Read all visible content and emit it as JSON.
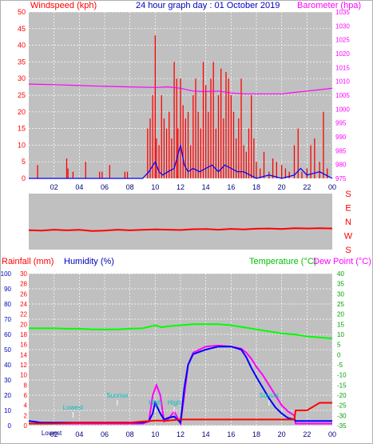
{
  "chart_data": [
    {
      "type": "bar+line",
      "title": "24 hour graph day : 01 October 2019",
      "left_axis_label": "Windspeed (kph)",
      "right_axis_label": "Barometer (hpa)",
      "x_ticks": [
        "02",
        "04",
        "06",
        "08",
        "10",
        "12",
        "14",
        "16",
        "18",
        "20",
        "22",
        "00"
      ],
      "y_left_range": [
        0,
        50
      ],
      "y_left_ticks": [
        "0",
        "5",
        "10",
        "15",
        "20",
        "25",
        "30",
        "35",
        "40",
        "45",
        "50"
      ],
      "y_right_range": [
        975,
        1035
      ],
      "y_right_ticks": [
        "975",
        "980",
        "985",
        "990",
        "995",
        "1000",
        "1005",
        "1010",
        "1015",
        "1020",
        "1025",
        "1030",
        "1035"
      ],
      "grid": true,
      "series": [
        {
          "name": "Windspeed (kph)",
          "color": "#ff0000",
          "style": "bars",
          "x": [
            0.7,
            3.0,
            3.1,
            3.5,
            4.5,
            5.6,
            5.8,
            6.4,
            7.6,
            7.8,
            9.4,
            9.6,
            9.8,
            10.0,
            10.1,
            10.3,
            10.5,
            10.7,
            10.9,
            11.1,
            11.3,
            11.5,
            11.7,
            11.8,
            12.0,
            12.2,
            12.4,
            12.6,
            12.8,
            13.0,
            13.2,
            13.4,
            13.6,
            13.8,
            14.0,
            14.2,
            14.4,
            14.6,
            14.8,
            15.0,
            15.2,
            15.4,
            15.6,
            15.8,
            16.0,
            16.2,
            16.4,
            16.6,
            16.8,
            17.0,
            17.2,
            17.4,
            17.6,
            17.8,
            18.0,
            18.3,
            18.6,
            19.0,
            19.3,
            19.6,
            20.0,
            20.3,
            20.6,
            21.0,
            21.3,
            21.6,
            22.0,
            22.3,
            22.6,
            23.0,
            23.3,
            23.6
          ],
          "y": [
            4,
            6,
            3,
            2,
            5,
            2,
            2,
            4,
            2,
            2,
            15,
            18,
            25,
            43,
            12,
            10,
            25,
            18,
            15,
            20,
            12,
            35,
            30,
            15,
            30,
            22,
            18,
            20,
            10,
            25,
            30,
            20,
            15,
            35,
            28,
            20,
            30,
            35,
            15,
            25,
            33,
            18,
            32,
            30,
            25,
            20,
            12,
            18,
            30,
            10,
            8,
            15,
            25,
            12,
            5,
            3,
            8,
            2,
            6,
            5,
            4,
            3,
            2,
            10,
            15,
            2,
            3,
            10,
            12,
            5,
            20,
            3
          ]
        },
        {
          "name": "Gust",
          "color": "#0000ff",
          "style": "line",
          "x": [
            0,
            9.0,
            9.5,
            10.0,
            10.3,
            10.6,
            11.0,
            11.5,
            12.0,
            12.3,
            12.6,
            13.0,
            13.5,
            14.0,
            14.5,
            15.0,
            15.5,
            16.0,
            16.5,
            17.0,
            17.5,
            18.0,
            19.0,
            20.0,
            21.0,
            21.5,
            22.0,
            23.0,
            24.0
          ],
          "y": [
            0,
            0,
            2,
            5,
            2,
            1,
            2,
            3,
            10,
            4,
            2,
            3,
            2,
            3,
            4,
            2,
            4,
            3,
            2,
            2,
            1,
            0,
            1,
            0,
            1,
            3,
            1,
            2,
            0
          ]
        },
        {
          "name": "Barometer (hpa)",
          "color": "#ff00ff",
          "style": "line",
          "axis": "right",
          "x": [
            0,
            2,
            4,
            6,
            8,
            10,
            11,
            12,
            13,
            14,
            15,
            16,
            17,
            18,
            19,
            20,
            21,
            22,
            23,
            24
          ],
          "y": [
            1009,
            1008.8,
            1008.5,
            1008.2,
            1008,
            1007.8,
            1008,
            1007.5,
            1006.5,
            1006.3,
            1006.5,
            1005.8,
            1005.5,
            1005.5,
            1005.5,
            1005.5,
            1006,
            1006.5,
            1007,
            1007.5
          ]
        }
      ]
    },
    {
      "type": "line",
      "left_axis_label": "",
      "right_axis_label": "",
      "direction_labels": [
        "S",
        "E",
        "N",
        "W",
        "S"
      ],
      "grid": false,
      "series": [
        {
          "name": "Wind Direction",
          "color": "#ff0000",
          "style": "line",
          "x": [
            0,
            1,
            2,
            3,
            4,
            5,
            6,
            7,
            8,
            9,
            10,
            11,
            12,
            13,
            14,
            15,
            16,
            17,
            18,
            19,
            20,
            21,
            22,
            23,
            24
          ],
          "y": [
            235,
            238,
            232,
            236,
            233,
            240,
            238,
            232,
            236,
            233,
            230,
            232,
            234,
            229,
            228,
            232,
            227,
            230,
            226,
            224,
            228,
            222,
            224,
            222,
            224
          ]
        }
      ]
    },
    {
      "type": "line",
      "left_axis_label": "Rainfall (mm)",
      "left_axis_label2": "Humidity (%)",
      "right_axis_label": "Temperature (°C)",
      "right_axis_label2": "Dew Point (°C)",
      "x_ticks": [
        "02",
        "04",
        "06",
        "08",
        "10",
        "12",
        "14",
        "16",
        "18",
        "20",
        "22",
        "00"
      ],
      "y_humidity_ticks": [
        "0",
        "10",
        "20",
        "30",
        "40",
        "50",
        "60",
        "70",
        "80",
        "90",
        "100"
      ],
      "y_rain_ticks": [
        "0",
        "2",
        "4",
        "6",
        "8",
        "10",
        "12",
        "14",
        "16",
        "18",
        "20",
        "22",
        "24",
        "26",
        "28",
        "30"
      ],
      "y_temp_range": [
        -35,
        40
      ],
      "y_temp_ticks": [
        "-35",
        "-30",
        "-25",
        "-20",
        "-15",
        "-10",
        "-5",
        "0",
        "5",
        "10",
        "15",
        "20",
        "25",
        "30",
        "35",
        "40"
      ],
      "grid": true,
      "annotations": [
        {
          "text": "Lowest",
          "x": 3.5
        },
        {
          "text": "Sunrise",
          "x": 7.0
        },
        {
          "text": "Sunset",
          "x": 19.0
        },
        {
          "text": "Lowest",
          "x": 1.8
        },
        {
          "text": "High",
          "x": 10.0
        },
        {
          "text": "High",
          "x": 11.5
        }
      ],
      "series": [
        {
          "name": "Temperature (°C)",
          "color": "#00ff00",
          "axis": "right",
          "x": [
            0,
            1,
            2,
            3,
            4,
            5,
            6,
            7,
            8,
            9,
            10,
            10.5,
            11,
            12,
            13,
            14,
            15,
            16,
            17,
            18,
            19,
            20,
            21,
            22,
            23,
            24
          ],
          "y": [
            13,
            13,
            13,
            12.8,
            12.8,
            12.5,
            12.5,
            12.5,
            12.8,
            13,
            14.5,
            13.5,
            14,
            14.5,
            15,
            15,
            15,
            14.5,
            13.5,
            12.5,
            11.5,
            10.5,
            10,
            9,
            8.5,
            8
          ]
        },
        {
          "name": "Dew Point (°C)",
          "color": "#ff00ff",
          "axis": "right",
          "x": [
            0,
            1,
            2,
            3,
            4,
            5,
            6,
            7,
            8,
            9,
            9.5,
            9.8,
            10.1,
            10.4,
            10.7,
            11,
            11.5,
            12,
            12.3,
            12.6,
            13,
            14,
            15,
            16,
            16.8,
            17.2,
            17.6,
            18,
            18.5,
            19,
            19.5,
            20,
            20.5,
            21,
            21.1,
            22,
            23,
            24
          ],
          "y": [
            -34,
            -34,
            -34,
            -34,
            -34,
            -34,
            -34,
            -34,
            -34,
            -34,
            -33,
            -20,
            -15,
            -20,
            -33,
            -32,
            -28,
            -34,
            -20,
            -5,
            1,
            4,
            4.5,
            4,
            3,
            1,
            -2,
            -6,
            -10,
            -15,
            -20,
            -25,
            -28,
            -30,
            -34,
            -34,
            -34,
            -34
          ]
        },
        {
          "name": "Humidity (%)",
          "color": "#0000ff",
          "axis": "left",
          "x": [
            0,
            1,
            2,
            3,
            4,
            5,
            6,
            7,
            8,
            9,
            9.5,
            9.8,
            10.0,
            10.4,
            10.7,
            11,
            11.5,
            12,
            12.3,
            12.6,
            13,
            14,
            15,
            16,
            16.8,
            17.2,
            17.6,
            18,
            18.5,
            19,
            19.5,
            20,
            20.5,
            21,
            21.1,
            22,
            23,
            24
          ],
          "y": [
            3,
            2,
            2,
            2,
            2,
            2,
            2,
            2,
            2,
            2,
            3,
            8,
            15,
            8,
            4,
            5,
            6,
            2,
            25,
            40,
            47,
            50,
            52,
            52,
            50,
            45,
            38,
            32,
            25,
            18,
            12,
            8,
            5,
            4,
            3,
            3,
            3,
            3
          ]
        },
        {
          "name": "Rainfall (mm)",
          "color": "#ff0000",
          "axis": "rain",
          "x": [
            0,
            2,
            4,
            6,
            8,
            9,
            10,
            11,
            12,
            13,
            14,
            15,
            16,
            17,
            18,
            19,
            20,
            21,
            21.1,
            22,
            23,
            24
          ],
          "y": [
            0.4,
            0.4,
            0.6,
            0.6,
            0.6,
            0.8,
            1.0,
            1.0,
            1.2,
            1.2,
            1.2,
            1.2,
            1.2,
            1.2,
            1.2,
            1.2,
            1.2,
            1.2,
            3.0,
            3.0,
            4.5,
            4.5
          ]
        }
      ]
    }
  ]
}
